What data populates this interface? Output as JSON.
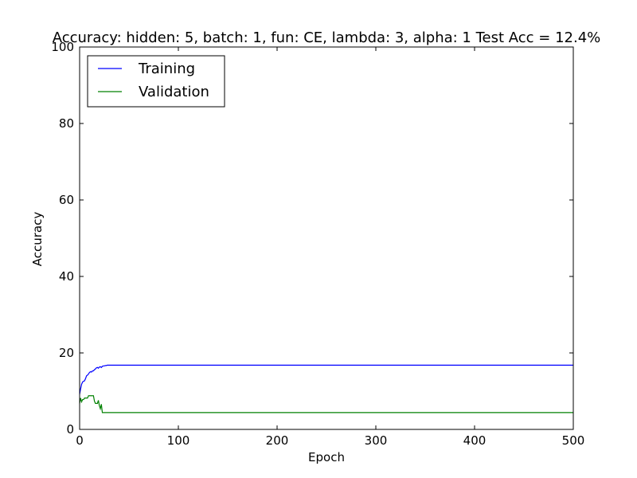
{
  "chart_data": {
    "type": "line",
    "title": "Accuracy: hidden: 5, batch: 1, fun: CE, lambda: 3, alpha: 1  Test Acc = 12.4%",
    "xlabel": "Epoch",
    "ylabel": "Accuracy",
    "xlim": [
      0,
      500
    ],
    "ylim": [
      0,
      100
    ],
    "xticks": [
      0,
      100,
      200,
      300,
      400,
      500
    ],
    "yticks": [
      0,
      20,
      40,
      60,
      80,
      100
    ],
    "grid": false,
    "legend_position": "top-left",
    "series": [
      {
        "name": "Training",
        "color": "#0000ff",
        "x": [
          0,
          1,
          2,
          3,
          4,
          5,
          6,
          7,
          8,
          9,
          10,
          11,
          12,
          13,
          14,
          15,
          16,
          17,
          18,
          19,
          20,
          21,
          22,
          23,
          24,
          25,
          26,
          27,
          28,
          29,
          30,
          40,
          60,
          100,
          200,
          300,
          400,
          500
        ],
        "y": [
          9.2,
          10.6,
          11.8,
          12.4,
          12.6,
          12.7,
          13.3,
          14.0,
          14.2,
          14.5,
          14.9,
          15.1,
          15.0,
          15.3,
          15.3,
          15.6,
          15.8,
          16.1,
          16.2,
          16.0,
          16.3,
          16.4,
          16.2,
          16.5,
          16.6,
          16.6,
          16.7,
          16.7,
          16.8,
          16.8,
          16.8,
          16.8,
          16.8,
          16.8,
          16.8,
          16.8,
          16.8,
          16.8
        ]
      },
      {
        "name": "Validation",
        "color": "#008000",
        "x": [
          0,
          1,
          2,
          3,
          4,
          5,
          6,
          7,
          8,
          9,
          10,
          11,
          12,
          13,
          14,
          15,
          16,
          17,
          18,
          19,
          20,
          21,
          22,
          23,
          24,
          25,
          30,
          100,
          200,
          300,
          400,
          500
        ],
        "y": [
          6.8,
          8.2,
          7.2,
          7.8,
          7.8,
          8.2,
          8.2,
          8.2,
          8.2,
          8.8,
          8.8,
          8.8,
          8.8,
          8.8,
          8.8,
          7.4,
          6.8,
          6.8,
          6.8,
          7.6,
          6.2,
          5.4,
          6.6,
          4.4,
          4.4,
          4.4,
          4.4,
          4.4,
          4.4,
          4.4,
          4.4,
          4.4
        ]
      }
    ]
  }
}
